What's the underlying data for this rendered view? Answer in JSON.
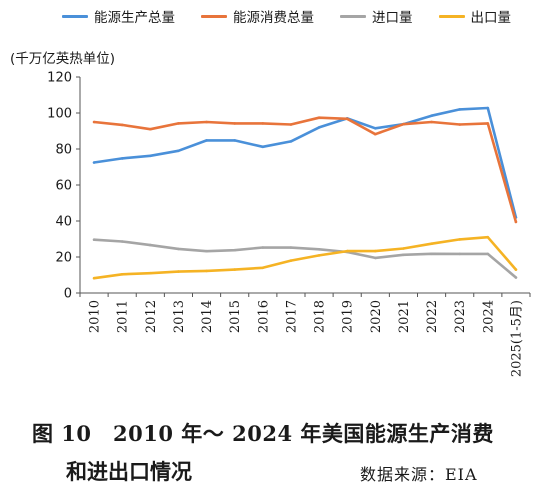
{
  "chart_data": {
    "type": "line",
    "unit_label": "(千万亿英热单位)",
    "categories": [
      "2010",
      "2011",
      "2012",
      "2013",
      "2014",
      "2015",
      "2016",
      "2017",
      "2018",
      "2019",
      "2020",
      "2021",
      "2022",
      "2023",
      "2024",
      "2025(1-5月)"
    ],
    "ylim": [
      0,
      120
    ],
    "yticks": [
      0,
      20,
      40,
      60,
      80,
      100,
      120
    ],
    "grid": false,
    "legend_position": "top",
    "series": [
      {
        "name": "能源生产总量",
        "color": "#4a90d9",
        "values": [
          72.5,
          74.8,
          76.2,
          79.0,
          84.8,
          84.8,
          81.2,
          84.2,
          92.0,
          97.0,
          91.5,
          93.8,
          98.5,
          102.0,
          102.8,
          42.0
        ]
      },
      {
        "name": "能源消费总量",
        "color": "#e8743b",
        "values": [
          95.0,
          93.4,
          91.0,
          94.2,
          95.0,
          94.2,
          94.2,
          93.6,
          97.4,
          96.8,
          88.2,
          93.8,
          95.0,
          93.6,
          94.2,
          39.5
        ]
      },
      {
        "name": "进口量",
        "color": "#a5a5a5",
        "values": [
          29.6,
          28.6,
          26.6,
          24.5,
          23.2,
          23.8,
          25.3,
          25.2,
          24.3,
          22.8,
          19.5,
          21.2,
          21.8,
          21.7,
          21.7,
          8.6
        ]
      },
      {
        "name": "出口量",
        "color": "#f5b324",
        "values": [
          8.2,
          10.4,
          11.0,
          11.9,
          12.3,
          13.0,
          14.0,
          18.0,
          20.9,
          23.3,
          23.3,
          24.7,
          27.4,
          29.8,
          31.0,
          13.0
        ]
      }
    ]
  },
  "caption": {
    "line1": "图 10　2010 年～ 2024 年美国能源生产消费",
    "line2": "和进出口情况",
    "source": "数据来源：EIA"
  }
}
